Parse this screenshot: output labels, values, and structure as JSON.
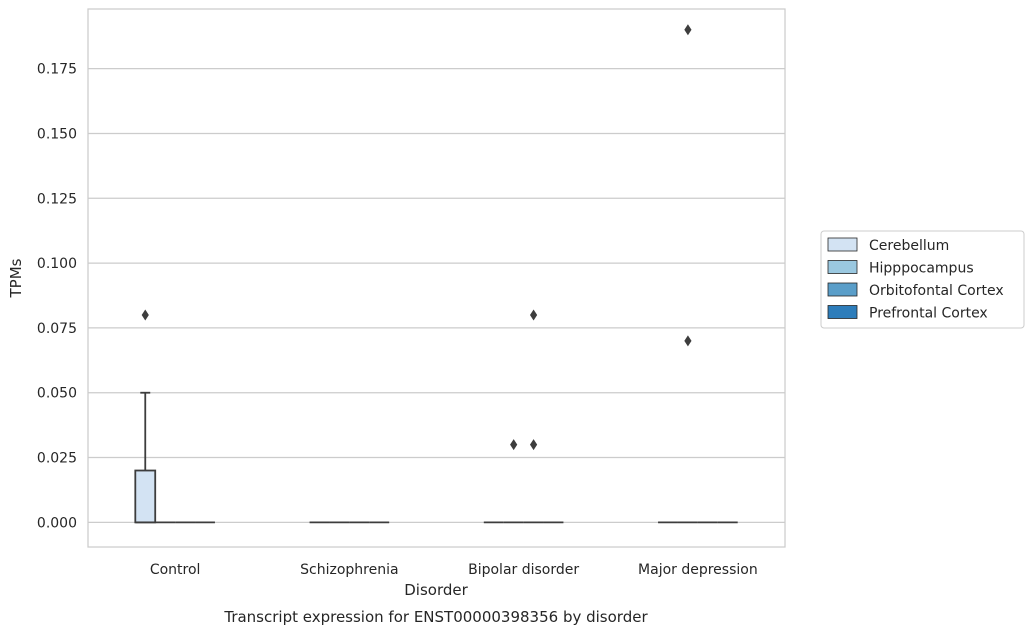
{
  "chart_data": {
    "type": "box",
    "title": "",
    "caption": "Transcript expression for ENST00000398356 by disorder",
    "xlabel": "Disorder",
    "ylabel": "TPMs",
    "ylim": [
      -0.0095,
      0.198
    ],
    "yticks": [
      0.0,
      0.025,
      0.05,
      0.075,
      0.1,
      0.125,
      0.15,
      0.175
    ],
    "ytick_labels": [
      "0.000",
      "0.025",
      "0.050",
      "0.075",
      "0.100",
      "0.125",
      "0.150",
      "0.175"
    ],
    "grid": "horizontal",
    "legend_position": "right",
    "categories": [
      "Control",
      "Schizophrenia",
      "Bipolar disorder",
      "Major depression"
    ],
    "series": [
      {
        "name": "Cerebellum",
        "color": "#d3e3f3",
        "boxes": [
          {
            "q1": 0.0,
            "median": 0.0,
            "q3": 0.02,
            "whisker_low": 0.0,
            "whisker_high": 0.05,
            "outliers": [
              0.08
            ]
          },
          {
            "q1": 0.0,
            "median": 0.0,
            "q3": 0.0,
            "whisker_low": 0.0,
            "whisker_high": 0.0,
            "outliers": []
          },
          {
            "q1": 0.0,
            "median": 0.0,
            "q3": 0.0,
            "whisker_low": 0.0,
            "whisker_high": 0.0,
            "outliers": []
          },
          {
            "q1": 0.0,
            "median": 0.0,
            "q3": 0.0,
            "whisker_low": 0.0,
            "whisker_high": 0.0,
            "outliers": []
          }
        ]
      },
      {
        "name": "Hipppocampus",
        "color": "#9ac8e0",
        "boxes": [
          {
            "q1": 0.0,
            "median": 0.0,
            "q3": 0.0,
            "whisker_low": 0.0,
            "whisker_high": 0.0,
            "outliers": []
          },
          {
            "q1": 0.0,
            "median": 0.0,
            "q3": 0.0,
            "whisker_low": 0.0,
            "whisker_high": 0.0,
            "outliers": []
          },
          {
            "q1": 0.0,
            "median": 0.0,
            "q3": 0.0,
            "whisker_low": 0.0,
            "whisker_high": 0.0,
            "outliers": [
              0.03
            ]
          },
          {
            "q1": 0.0,
            "median": 0.0,
            "q3": 0.0,
            "whisker_low": 0.0,
            "whisker_high": 0.0,
            "outliers": [
              0.07,
              0.19
            ]
          }
        ]
      },
      {
        "name": "Orbitofontal Cortex",
        "color": "#5a9ec9",
        "boxes": [
          {
            "q1": 0.0,
            "median": 0.0,
            "q3": 0.0,
            "whisker_low": 0.0,
            "whisker_high": 0.0,
            "outliers": []
          },
          {
            "q1": 0.0,
            "median": 0.0,
            "q3": 0.0,
            "whisker_low": 0.0,
            "whisker_high": 0.0,
            "outliers": []
          },
          {
            "q1": 0.0,
            "median": 0.0,
            "q3": 0.0,
            "whisker_low": 0.0,
            "whisker_high": 0.0,
            "outliers": [
              0.03,
              0.08
            ]
          },
          {
            "q1": 0.0,
            "median": 0.0,
            "q3": 0.0,
            "whisker_low": 0.0,
            "whisker_high": 0.0,
            "outliers": []
          }
        ]
      },
      {
        "name": "Prefrontal Cortex",
        "color": "#2d7dbb",
        "boxes": [
          {
            "q1": 0.0,
            "median": 0.0,
            "q3": 0.0,
            "whisker_low": 0.0,
            "whisker_high": 0.0,
            "outliers": []
          },
          {
            "q1": 0.0,
            "median": 0.0,
            "q3": 0.0,
            "whisker_low": 0.0,
            "whisker_high": 0.0,
            "outliers": []
          },
          {
            "q1": 0.0,
            "median": 0.0,
            "q3": 0.0,
            "whisker_low": 0.0,
            "whisker_high": 0.0,
            "outliers": []
          },
          {
            "q1": 0.0,
            "median": 0.0,
            "q3": 0.0,
            "whisker_low": 0.0,
            "whisker_high": 0.0,
            "outliers": []
          }
        ]
      }
    ]
  }
}
